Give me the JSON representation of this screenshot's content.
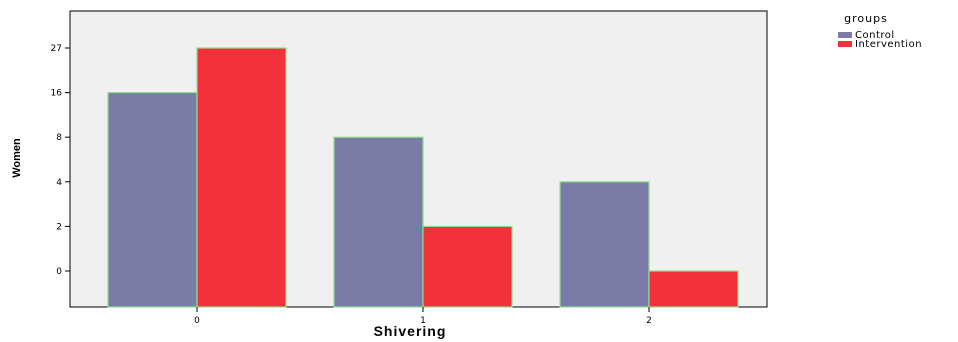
{
  "chart_data": {
    "type": "bar",
    "title": "",
    "xlabel": "Shivering",
    "ylabel": "Women",
    "categories": [
      "0",
      "1",
      "2"
    ],
    "y_tick_labels": [
      "0",
      "2",
      "4",
      "8",
      "16",
      "27"
    ],
    "series": [
      {
        "name": "Control",
        "values": [
          16,
          8,
          4
        ],
        "color": "#7b7ba8"
      },
      {
        "name": "Intervention",
        "values": [
          27,
          2,
          0
        ],
        "color": "#f2313a"
      }
    ],
    "legend_title": "groups",
    "legend_position": "top-right",
    "bar_outline_color": "#8ee08e",
    "plot_background": "#f0f0f0"
  }
}
